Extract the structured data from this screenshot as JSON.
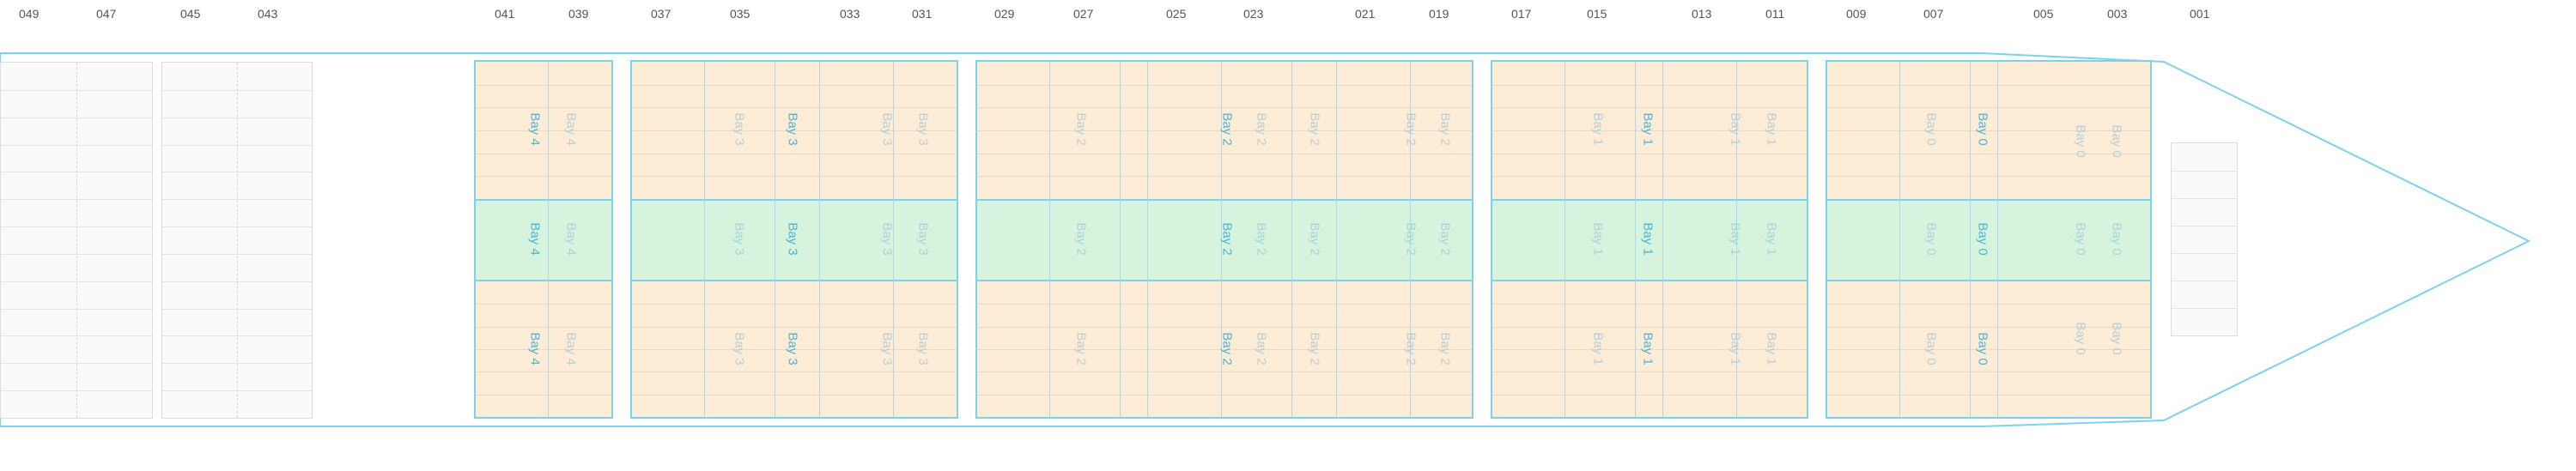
{
  "bay_numbers": [
    "049",
    "047",
    "045",
    "043",
    "041",
    "039",
    "037",
    "035",
    "033",
    "031",
    "029",
    "027",
    "025",
    "023",
    "021",
    "019",
    "017",
    "015",
    "013",
    "011",
    "009",
    "007",
    "005",
    "003",
    "001"
  ],
  "bay_labels": {
    "bay4": "Bay 4",
    "bay3": "Bay 3",
    "bay2": "Bay 2",
    "bay1": "Bay 1",
    "bay0": "Bay 0"
  },
  "colors": {
    "hull_outline": "#7fd0ea",
    "hold_fill": "#fcdcb4",
    "deck_fill": "#c8f0d2",
    "label": "#4ab3d8"
  }
}
